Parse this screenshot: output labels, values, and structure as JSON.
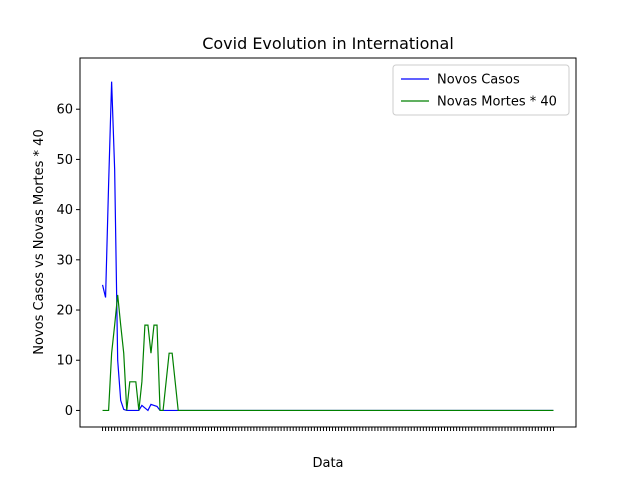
{
  "chart_data": {
    "type": "line",
    "title": "Covid Evolution in International",
    "x_label": "Data",
    "y_label": "Novos Casos vs Novas Mortes * 40",
    "categories": [
      null,
      null,
      null,
      null,
      null,
      null,
      null,
      null,
      null,
      null,
      null,
      null,
      null,
      null,
      null,
      null,
      null,
      null,
      null,
      null,
      null,
      null,
      null,
      null,
      null,
      null,
      null,
      null,
      null,
      null,
      null,
      null,
      null,
      null,
      null,
      null,
      null,
      null,
      null,
      null,
      null,
      null,
      null,
      null,
      null,
      null,
      null,
      null,
      null,
      null,
      null,
      null,
      null,
      null,
      null,
      null,
      null,
      null,
      null,
      null,
      null,
      null,
      null,
      null,
      null,
      null,
      null,
      null,
      null,
      null,
      null,
      null,
      null,
      null,
      null,
      null,
      null,
      null,
      null,
      null,
      null,
      null,
      null,
      null,
      null,
      null,
      null,
      null,
      null,
      null,
      null,
      null,
      null,
      null,
      null,
      null,
      null,
      null,
      null,
      null,
      null,
      null,
      null,
      null,
      null,
      null,
      null,
      null,
      null,
      null,
      null,
      null,
      null,
      null,
      null,
      null,
      null,
      null,
      null,
      null,
      null,
      null,
      null,
      null,
      null,
      null,
      null,
      null,
      null,
      null,
      null,
      null,
      null,
      null,
      null,
      null,
      null,
      null,
      null,
      null,
      null,
      null,
      null,
      null,
      null,
      null,
      null,
      null,
      null,
      null
    ],
    "series": [
      {
        "name": "Novos Casos",
        "color": "#0000ff",
        "values": [
          25,
          22.5,
          45,
          65.5,
          48,
          10,
          2,
          0.2,
          0,
          0,
          0,
          0,
          0,
          1,
          0.5,
          0,
          1.2,
          1,
          0.8,
          0,
          0,
          0,
          0,
          0,
          0,
          0,
          0,
          0,
          0,
          0,
          0,
          0,
          0,
          0,
          0,
          0,
          0,
          0,
          0,
          0,
          0,
          0,
          0,
          0,
          0,
          0,
          0,
          0,
          0,
          0,
          0,
          0,
          0,
          0,
          0,
          0,
          0,
          0,
          0,
          0,
          0,
          0,
          0,
          0,
          0,
          0,
          0,
          0,
          0,
          0,
          0,
          0,
          0,
          0,
          0,
          0,
          0,
          0,
          0,
          0,
          0,
          0,
          0,
          0,
          0,
          0,
          0,
          0,
          0,
          0,
          0,
          0,
          0,
          0,
          0,
          0,
          0,
          0,
          0,
          0,
          0,
          0,
          0,
          0,
          0,
          0,
          0,
          0,
          0,
          0,
          0,
          0,
          0,
          0,
          0,
          0,
          0,
          0,
          0,
          0,
          0,
          0,
          0,
          0,
          0,
          0,
          0,
          0,
          0,
          0,
          0,
          0,
          0,
          0,
          0,
          0,
          0,
          0,
          0,
          0,
          0,
          0,
          0,
          0,
          0,
          0,
          0,
          0,
          0,
          0
        ]
      },
      {
        "name": "Novas Mortes * 40",
        "color": "#008000",
        "values": [
          0,
          0,
          0,
          11.4,
          17,
          23,
          17,
          11.4,
          0,
          5.7,
          5.7,
          5.7,
          0,
          5.7,
          17,
          17,
          11.4,
          17,
          17,
          0,
          0,
          5.7,
          11.4,
          11.4,
          5.7,
          0,
          0,
          0,
          0,
          0,
          0,
          0,
          0,
          0,
          0,
          0,
          0,
          0,
          0,
          0,
          0,
          0,
          0,
          0,
          0,
          0,
          0,
          0,
          0,
          0,
          0,
          0,
          0,
          0,
          0,
          0,
          0,
          0,
          0,
          0,
          0,
          0,
          0,
          0,
          0,
          0,
          0,
          0,
          0,
          0,
          0,
          0,
          0,
          0,
          0,
          0,
          0,
          0,
          0,
          0,
          0,
          0,
          0,
          0,
          0,
          0,
          0,
          0,
          0,
          0,
          0,
          0,
          0,
          0,
          0,
          0,
          0,
          0,
          0,
          0,
          0,
          0,
          0,
          0,
          0,
          0,
          0,
          0,
          0,
          0,
          0,
          0,
          0,
          0,
          0,
          0,
          0,
          0,
          0,
          0,
          0,
          0,
          0,
          0,
          0,
          0,
          0,
          0,
          0,
          0,
          0,
          0,
          0,
          0,
          0,
          0,
          0,
          0,
          0,
          0,
          0,
          0,
          0,
          0,
          0,
          0,
          0,
          0,
          0,
          0
        ]
      }
    ],
    "ylim": [
      -3.3,
      70.2
    ],
    "yticks": [
      0,
      10,
      20,
      30,
      40,
      50,
      60
    ],
    "legend": "upper right"
  }
}
